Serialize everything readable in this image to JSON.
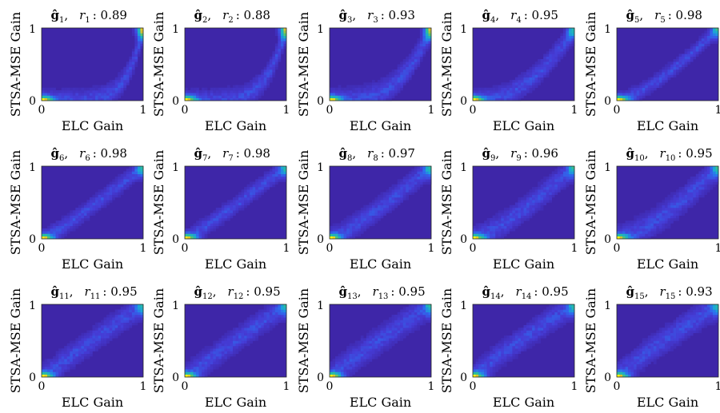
{
  "chart_data": {
    "type": "heatmap",
    "layout": {
      "rows": 3,
      "cols": 5
    },
    "shared": {
      "xlabel": "ELC Gain",
      "ylabel": "STSA-MSE Gain",
      "xlim": [
        0,
        1
      ],
      "ylim": [
        0,
        1
      ],
      "xticks": [
        "0",
        "1"
      ],
      "yticks": [
        "0",
        "1"
      ],
      "grid": false,
      "colormap": "parula"
    },
    "colors": {
      "background": "#3e26a8",
      "low": "#4332c0",
      "mid": "#1ba8d4",
      "high": "#37c47e",
      "peak": "#f9fb0e"
    },
    "panels": [
      {
        "index": 1,
        "title_vector": "ĝ",
        "title_sub": "1",
        "title_r": "r",
        "title_value": ": 0.89",
        "r": 0.89
      },
      {
        "index": 2,
        "title_vector": "ĝ",
        "title_sub": "2",
        "title_r": "r",
        "title_value": ": 0.88",
        "r": 0.88
      },
      {
        "index": 3,
        "title_vector": "ĝ",
        "title_sub": "3",
        "title_r": "r",
        "title_value": ": 0.93",
        "r": 0.93
      },
      {
        "index": 4,
        "title_vector": "ĝ",
        "title_sub": "4",
        "title_r": "r",
        "title_value": ": 0.95",
        "r": 0.95
      },
      {
        "index": 5,
        "title_vector": "ĝ",
        "title_sub": "5",
        "title_r": "r",
        "title_value": ": 0.98",
        "r": 0.98
      },
      {
        "index": 6,
        "title_vector": "ĝ",
        "title_sub": "6",
        "title_r": "r",
        "title_value": ": 0.98",
        "r": 0.98
      },
      {
        "index": 7,
        "title_vector": "ĝ",
        "title_sub": "7",
        "title_r": "r",
        "title_value": ": 0.98",
        "r": 0.98
      },
      {
        "index": 8,
        "title_vector": "ĝ",
        "title_sub": "8",
        "title_r": "r",
        "title_value": ": 0.97",
        "r": 0.97
      },
      {
        "index": 9,
        "title_vector": "ĝ",
        "title_sub": "9",
        "title_r": "r",
        "title_value": ": 0.96",
        "r": 0.96
      },
      {
        "index": 10,
        "title_vector": "ĝ",
        "title_sub": "10",
        "title_r": "r",
        "title_value": ": 0.95",
        "r": 0.95
      },
      {
        "index": 11,
        "title_vector": "ĝ",
        "title_sub": "11",
        "title_r": "r",
        "title_value": ": 0.95",
        "r": 0.95
      },
      {
        "index": 12,
        "title_vector": "ĝ",
        "title_sub": "12",
        "title_r": "r",
        "title_value": ": 0.95",
        "r": 0.95
      },
      {
        "index": 13,
        "title_vector": "ĝ",
        "title_sub": "13",
        "title_r": "r",
        "title_value": ": 0.95",
        "r": 0.95
      },
      {
        "index": 14,
        "title_vector": "ĝ",
        "title_sub": "14",
        "title_r": "r",
        "title_value": ": 0.95",
        "r": 0.95
      },
      {
        "index": 15,
        "title_vector": "ĝ",
        "title_sub": "15",
        "title_r": "r",
        "title_value": ": 0.93",
        "r": 0.93
      }
    ]
  }
}
